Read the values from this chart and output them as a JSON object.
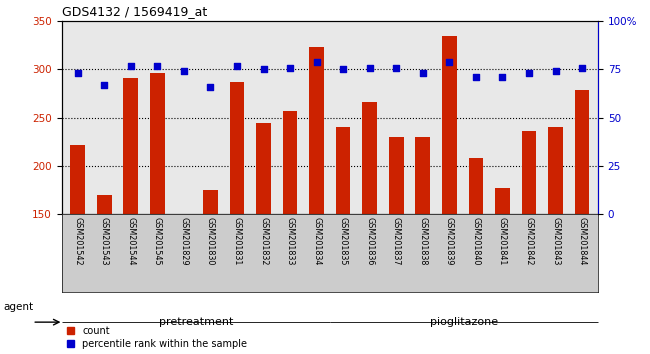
{
  "title": "GDS4132 / 1569419_at",
  "categories": [
    "GSM201542",
    "GSM201543",
    "GSM201544",
    "GSM201545",
    "GSM201829",
    "GSM201830",
    "GSM201831",
    "GSM201832",
    "GSM201833",
    "GSM201834",
    "GSM201835",
    "GSM201836",
    "GSM201837",
    "GSM201838",
    "GSM201839",
    "GSM201840",
    "GSM201841",
    "GSM201842",
    "GSM201843",
    "GSM201844"
  ],
  "bar_values": [
    222,
    170,
    291,
    296,
    150,
    175,
    287,
    245,
    257,
    323,
    240,
    266,
    230,
    230,
    335,
    208,
    177,
    236,
    240,
    279
  ],
  "dot_values_pct": [
    73,
    67,
    77,
    77,
    74,
    66,
    77,
    75,
    76,
    79,
    75,
    76,
    76,
    73,
    79,
    71,
    71,
    73,
    74,
    76
  ],
  "bar_color": "#cc2200",
  "dot_color": "#0000cc",
  "ylim_left": [
    150,
    350
  ],
  "ylim_right": [
    0,
    100
  ],
  "yticks_left": [
    150,
    200,
    250,
    300,
    350
  ],
  "yticks_right": [
    0,
    25,
    50,
    75,
    100
  ],
  "ytick_labels_right": [
    "0",
    "25",
    "50",
    "75",
    "100%"
  ],
  "grid_values": [
    200,
    250,
    300
  ],
  "n_pretreatment": 10,
  "n_pioglitazone": 10,
  "pretreatment_color": "#ccffcc",
  "pioglitazone_color": "#44ee44",
  "plot_bg_color": "#e8e8e8",
  "xlabel_bg_color": "#cccccc",
  "legend_count_label": "count",
  "legend_pct_label": "percentile rank within the sample",
  "xlabel_agent": "agent",
  "label_pretreatment": "pretreatment",
  "label_pioglitazone": "pioglitazone"
}
